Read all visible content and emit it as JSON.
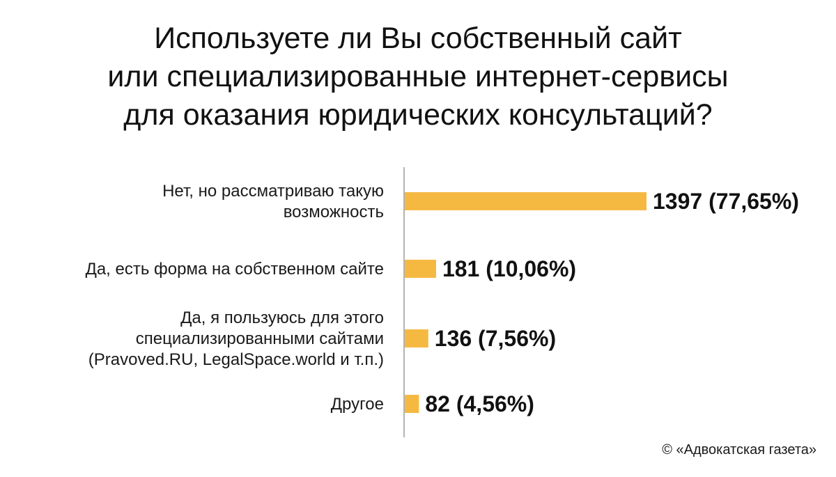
{
  "title_lines": [
    "Используете ли Вы собственный сайт",
    "или специализированные интернет-сервисы",
    "для оказания юридических консультаций?"
  ],
  "credit": "© «Адвокатская газета»",
  "colors": {
    "bar": "#F5B942",
    "axis": "#9a9a9a",
    "text": "#111111"
  },
  "chart_data": {
    "type": "bar",
    "orientation": "horizontal",
    "title": "Используете ли Вы собственный сайт или специализированные интернет-сервисы для оказания юридических консультаций?",
    "xlabel": "",
    "ylabel": "",
    "grid": false,
    "legend": "none",
    "xlim": [
      0,
      1397
    ],
    "categories": [
      [
        "Нет, но рассматриваю такую",
        "возможность"
      ],
      [
        "Да, есть форма на собственном сайте"
      ],
      [
        "Да, я пользуюсь для этого",
        "специализированными сайтами",
        "(Pravoved.RU, LegalSpace.world и т.п.)"
      ],
      [
        "Другое"
      ]
    ],
    "values": [
      1397,
      181,
      136,
      82
    ],
    "value_labels": [
      "1397 (77,65%)",
      "181 (10,06%)",
      "136 (7,56%)",
      "82 (4,56%)"
    ]
  }
}
